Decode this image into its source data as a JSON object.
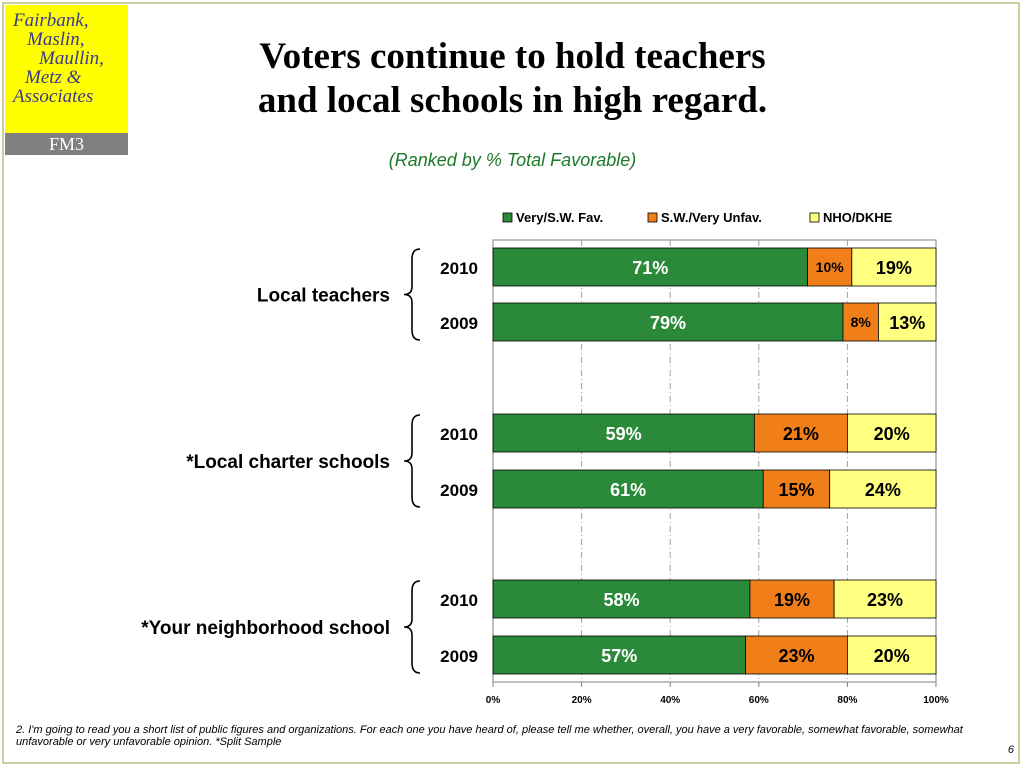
{
  "logo": {
    "lines": [
      "Fairbank,",
      "Maslin,",
      "Maullin,",
      "Metz &",
      "Associates"
    ],
    "badge": "FM3"
  },
  "slide": {
    "title_line1": "Voters continue to hold teachers",
    "title_line2": "and local schools in high regard.",
    "subtitle": "(Ranked by % Total Favorable)",
    "footnote": "2. I'm going to read you a short list of public figures and organizations.  For each one you have heard of, please tell me whether, overall, you have a very favorable, somewhat favorable, somewhat unfavorable or very unfavorable opinion. *Split Sample",
    "page_number": "6"
  },
  "chart_data": {
    "type": "bar",
    "orientation": "horizontal",
    "stacked": true,
    "legend_position": "top",
    "xlim": [
      0,
      100
    ],
    "x_ticks": [
      "0%",
      "20%",
      "40%",
      "60%",
      "80%",
      "100%"
    ],
    "grid": "vertical dashed",
    "colors": {
      "fav": "#2a8a3a",
      "unfav": "#f07f1a",
      "nho": "#ffff80"
    },
    "series": [
      {
        "name": "Very/S.W. Fav.",
        "key": "fav"
      },
      {
        "name": "S.W./Very Unfav.",
        "key": "unfav"
      },
      {
        "name": "NHO/DKHE",
        "key": "nho"
      }
    ],
    "groups": [
      {
        "label": "Local teachers",
        "rows": [
          {
            "year": "2010",
            "values": [
              71,
              10,
              19
            ],
            "labels": [
              "71%",
              "10%",
              "19%"
            ]
          },
          {
            "year": "2009",
            "values": [
              79,
              8,
              13
            ],
            "labels": [
              "79%",
              "8%",
              "13%"
            ]
          }
        ]
      },
      {
        "label": "*Local charter schools",
        "rows": [
          {
            "year": "2010",
            "values": [
              59,
              21,
              20
            ],
            "labels": [
              "59%",
              "21%",
              "20%"
            ]
          },
          {
            "year": "2009",
            "values": [
              61,
              15,
              24
            ],
            "labels": [
              "61%",
              "15%",
              "24%"
            ]
          }
        ]
      },
      {
        "label": "*Your neighborhood school",
        "rows": [
          {
            "year": "2010",
            "values": [
              58,
              19,
              23
            ],
            "labels": [
              "58%",
              "19%",
              "23%"
            ]
          },
          {
            "year": "2009",
            "values": [
              57,
              23,
              20
            ],
            "labels": [
              "57%",
              "23%",
              "20%"
            ]
          }
        ]
      }
    ]
  }
}
